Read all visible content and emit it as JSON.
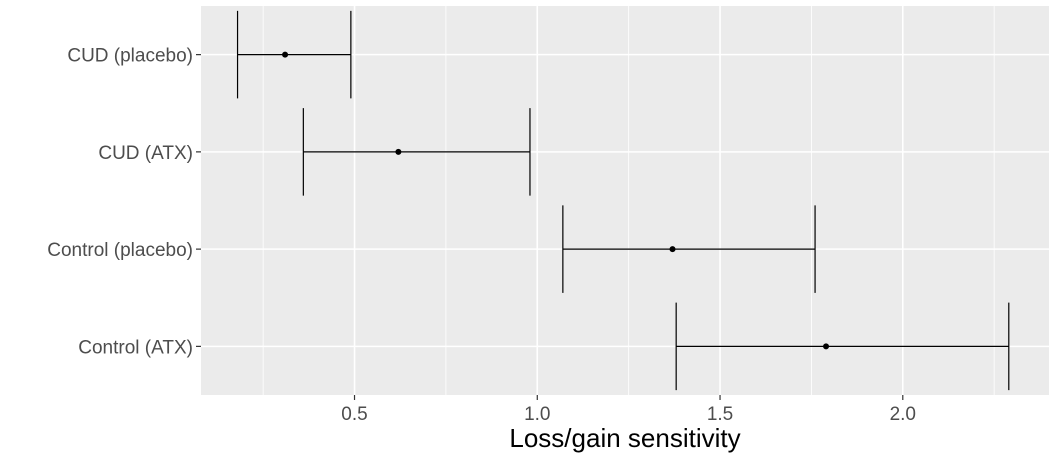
{
  "chart_data": {
    "type": "errorbar",
    "title": "",
    "xlabel": "Loss/gain sensitivity",
    "ylabel": "",
    "xlim": [
      0.08,
      2.4
    ],
    "x_ticks": [
      0.5,
      1.0,
      1.5,
      2.0
    ],
    "x_tick_labels": [
      "0.5",
      "1.0",
      "1.5",
      "2.0"
    ],
    "x_minor_ticks": [
      0.25,
      0.75,
      1.25,
      1.75,
      2.25
    ],
    "categories": [
      "CUD (placebo)",
      "CUD (ATX)",
      "Control (placebo)",
      "Control (ATX)"
    ],
    "points": [
      {
        "category": "CUD (placebo)",
        "estimate": 0.31,
        "lower": 0.18,
        "upper": 0.49
      },
      {
        "category": "CUD (ATX)",
        "estimate": 0.62,
        "lower": 0.36,
        "upper": 0.98
      },
      {
        "category": "Control (placebo)",
        "estimate": 1.37,
        "lower": 1.07,
        "upper": 1.76
      },
      {
        "category": "Control (ATX)",
        "estimate": 1.79,
        "lower": 1.38,
        "upper": 2.29
      }
    ],
    "grid": true,
    "colors": {
      "panel": "#ebebeb",
      "grid": "#ffffff",
      "marks": "#000000",
      "text": "#4d4d4d"
    }
  }
}
